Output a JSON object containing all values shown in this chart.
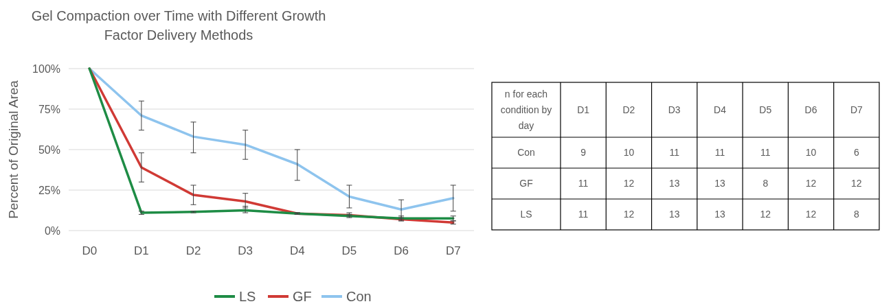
{
  "chart_data": [
    {
      "type": "line",
      "title": "Gel Compaction over Time with Different Growth Factor Delivery Methods",
      "ylabel": "Percent of Original Area",
      "categories": [
        "D0",
        "D1",
        "D2",
        "D3",
        "D4",
        "D5",
        "D6",
        "D7"
      ],
      "ylim": [
        0,
        100
      ],
      "yticks": [
        {
          "value": 0,
          "label": "0%"
        },
        {
          "value": 25,
          "label": "25%"
        },
        {
          "value": 50,
          "label": "50%"
        },
        {
          "value": 75,
          "label": "75%"
        },
        {
          "value": 100,
          "label": "100%"
        }
      ],
      "grid": "y",
      "legend": "bottom",
      "marker": "none",
      "line_style": "solid",
      "series": [
        {
          "name": "LS",
          "color": "#1e8c45",
          "values": [
            100,
            11,
            11.5,
            12.5,
            10.5,
            9,
            7.5,
            7.5
          ],
          "errors": [
            null,
            [
              10,
              12
            ],
            [
              11,
              12
            ],
            [
              11,
              15
            ],
            [
              10,
              11
            ],
            [
              8,
              10
            ],
            [
              6,
              9
            ],
            [
              6,
              9
            ]
          ]
        },
        {
          "name": "GF",
          "color": "#d03a35",
          "values": [
            100,
            39,
            22,
            18,
            10.5,
            9.5,
            7,
            5
          ],
          "errors": [
            null,
            [
              30,
              48
            ],
            [
              16,
              28
            ],
            [
              14,
              23
            ],
            [
              10,
              11
            ],
            [
              9,
              11
            ],
            [
              6,
              8
            ],
            [
              4,
              6
            ]
          ]
        },
        {
          "name": "Con",
          "color": "#8ec4ee",
          "values": [
            100,
            71,
            58,
            53,
            41,
            21,
            13,
            20
          ],
          "errors": [
            null,
            [
              62,
              80
            ],
            [
              48,
              67
            ],
            [
              44,
              62
            ],
            [
              31,
              50
            ],
            [
              14,
              28
            ],
            [
              7,
              19
            ],
            [
              12,
              28
            ]
          ]
        }
      ]
    },
    {
      "type": "heatmap",
      "title": "n for each condition by day",
      "categories": [
        "D1",
        "D2",
        "D3",
        "D4",
        "D5",
        "D6",
        "D7"
      ],
      "y_categories": [
        "Con",
        "GF",
        "LS"
      ],
      "data_labels": true,
      "cells": [
        [
          9,
          10,
          11,
          11,
          11,
          10,
          6
        ],
        [
          11,
          12,
          13,
          13,
          8,
          12,
          12
        ],
        [
          11,
          12,
          13,
          13,
          12,
          12,
          8
        ]
      ]
    }
  ]
}
